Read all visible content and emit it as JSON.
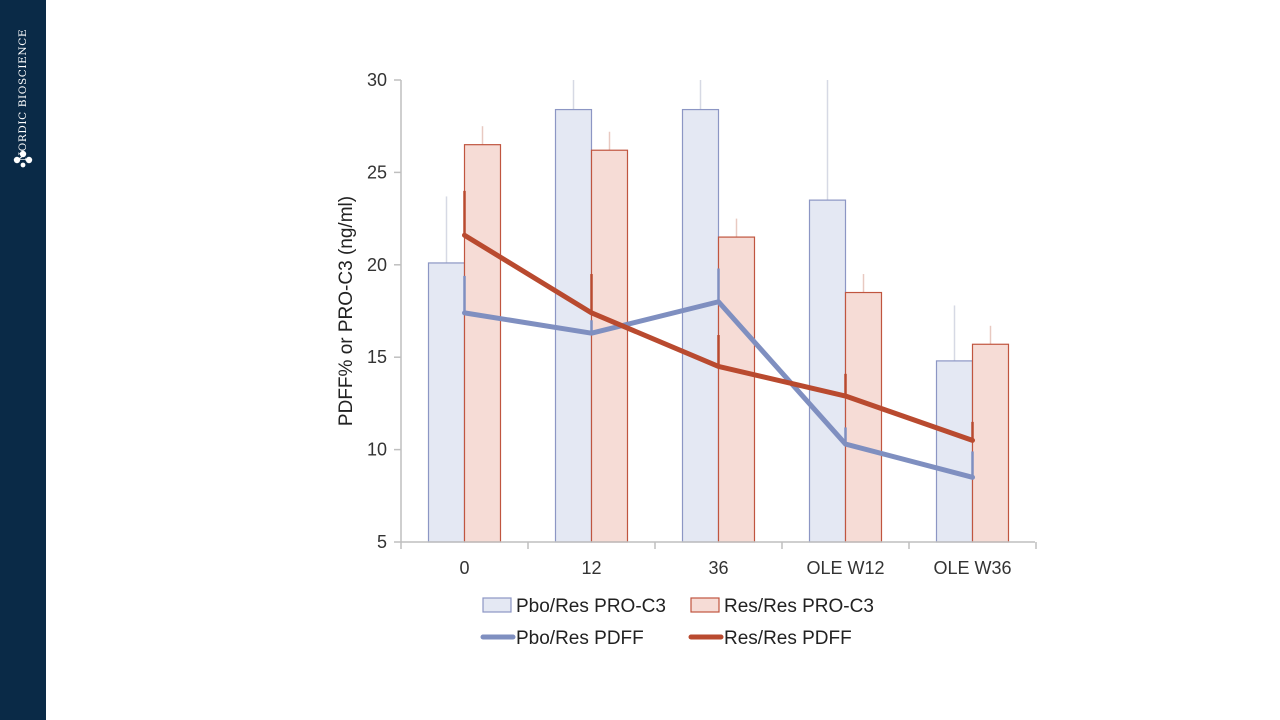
{
  "brand": {
    "name": "NORDIC BIOSCIENCE",
    "logo_icon": "molecule-icon"
  },
  "colors": {
    "sidebar": "#0a2a47",
    "pbo_bar_fill": "#e4e8f3",
    "pbo_bar_stroke": "#8c96c4",
    "res_bar_fill": "#f6dcd6",
    "res_bar_stroke": "#c0553f",
    "pbo_line": "#7f8fc0",
    "res_line": "#b94a2f",
    "axis": "#bfbfbf"
  },
  "chart_data": {
    "type": "bar",
    "ylabel": "PDFF% or PRO-C3 (ng/ml)",
    "xlabel": "",
    "ylim": [
      5,
      30
    ],
    "yticks": [
      5,
      10,
      15,
      20,
      25,
      30
    ],
    "grid": false,
    "legend_position": "bottom",
    "categories": [
      "0",
      "12",
      "36",
      "OLE W12",
      "OLE W36"
    ],
    "bar_series": [
      {
        "name": "Pbo/Res PRO-C3",
        "values": [
          20.1,
          28.4,
          28.4,
          23.5,
          14.8
        ],
        "error_upper": [
          23.7,
          30.0,
          30.0,
          30.0,
          17.8
        ]
      },
      {
        "name": "Res/Res PRO-C3",
        "values": [
          26.5,
          26.2,
          21.5,
          18.5,
          15.7
        ],
        "error_upper": [
          27.5,
          27.2,
          22.5,
          19.5,
          16.7
        ]
      }
    ],
    "line_series": [
      {
        "name": "Pbo/Res PDFF",
        "values": [
          17.4,
          16.3,
          18.0,
          10.3,
          8.5
        ],
        "error_upper": [
          19.4,
          17.0,
          19.8,
          11.2,
          9.9
        ]
      },
      {
        "name": "Res/Res PDFF",
        "values": [
          21.6,
          17.4,
          14.5,
          12.9,
          10.5
        ],
        "error_upper": [
          24.0,
          19.5,
          16.2,
          14.1,
          11.5
        ]
      }
    ]
  }
}
